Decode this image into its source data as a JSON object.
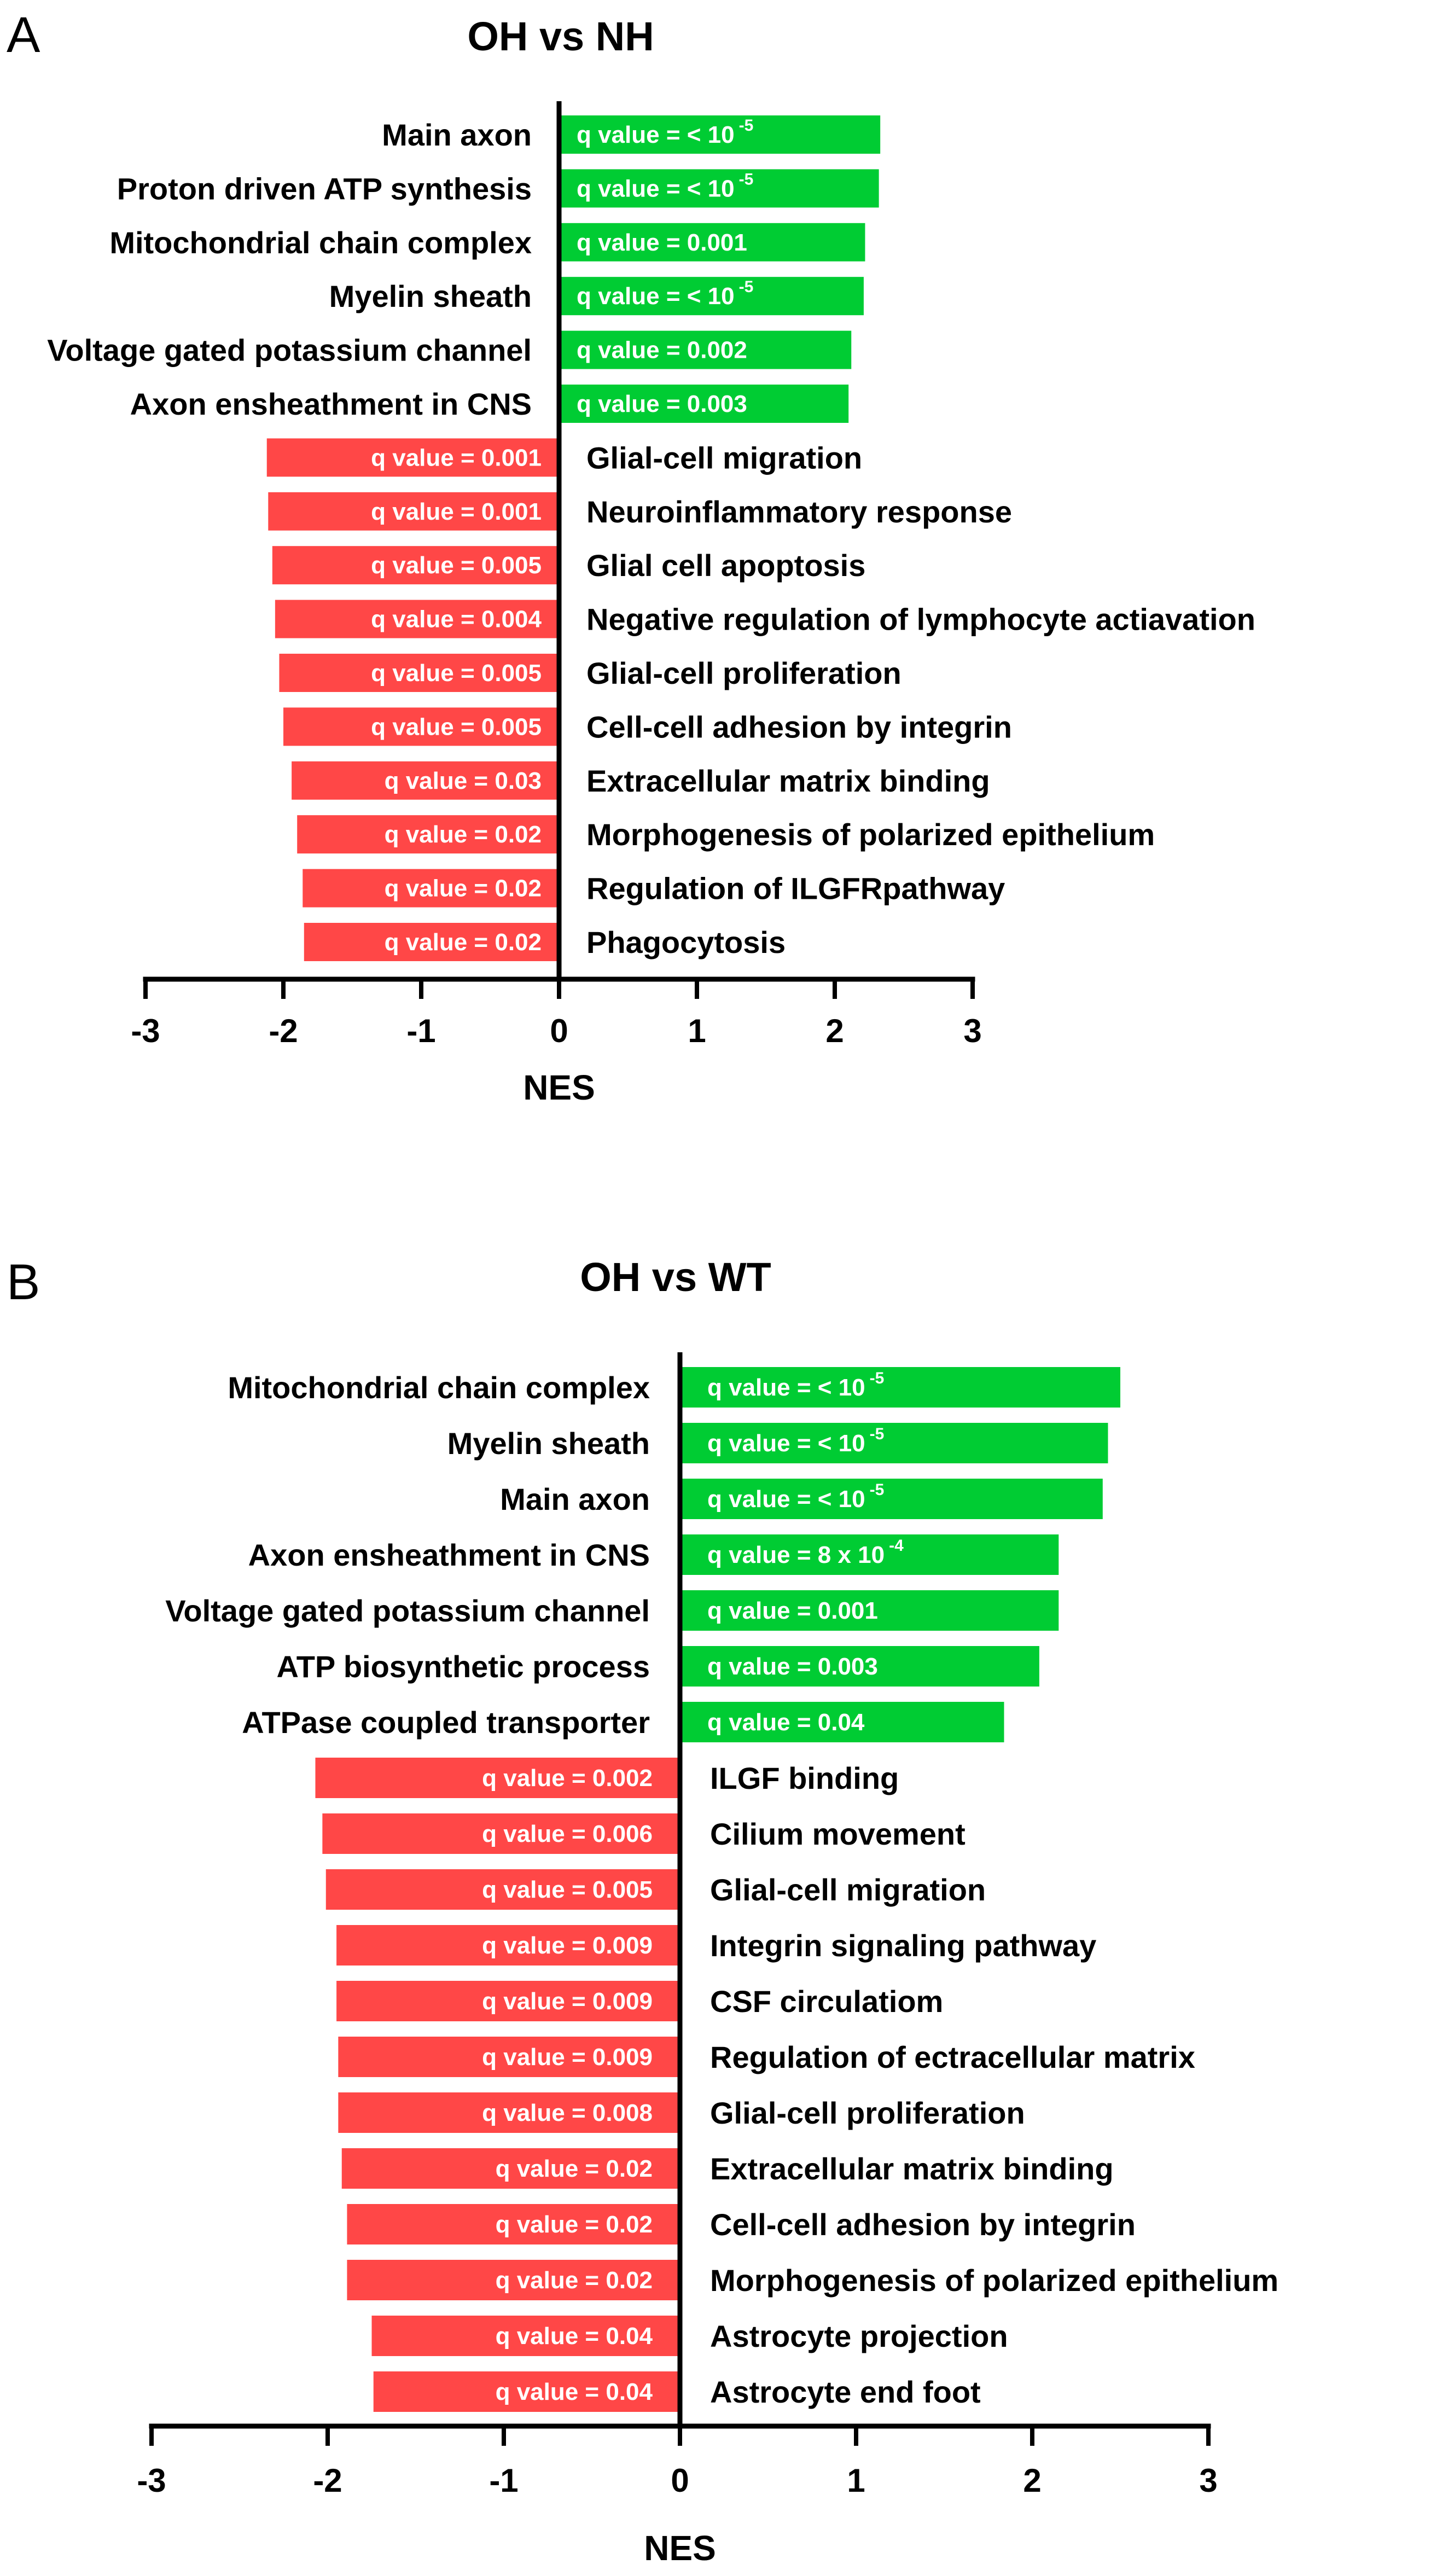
{
  "colors": {
    "positive": "#00cc33",
    "negative": "#ff4747",
    "axis": "#000000",
    "bar_text": "#ffffff"
  },
  "chart_data": [
    {
      "type": "bar",
      "orientation": "horizontal",
      "panel_label": "A",
      "title": "OH vs NH",
      "xlabel": "NES",
      "ylabel": "",
      "xlim": [
        -3,
        3
      ],
      "xticks": [
        "-3",
        "-2",
        "-1",
        "0",
        "1",
        "2",
        "3"
      ],
      "bars": [
        {
          "term": "Main axon",
          "nes": 2.33,
          "q_text": "q value = < 10",
          "q_exp": "-5"
        },
        {
          "term": "Proton driven ATP synthesis",
          "nes": 2.32,
          "q_text": "q value = < 10",
          "q_exp": "-5"
        },
        {
          "term": "Mitochondrial chain complex",
          "nes": 2.22,
          "q_text": "q value = 0.001",
          "q_exp": ""
        },
        {
          "term": "Myelin sheath",
          "nes": 2.21,
          "q_text": "q value = < 10",
          "q_exp": "-5"
        },
        {
          "term": "Voltage gated potassium channel",
          "nes": 2.12,
          "q_text": "q value = 0.002",
          "q_exp": ""
        },
        {
          "term": "Axon ensheathment in CNS",
          "nes": 2.1,
          "q_text": "q value = 0.003",
          "q_exp": ""
        },
        {
          "term": "Glial-cell migration",
          "nes": -2.12,
          "q_text": "q value = 0.001",
          "q_exp": ""
        },
        {
          "term": "Neuroinflammatory response",
          "nes": -2.11,
          "q_text": "q value = 0.001",
          "q_exp": ""
        },
        {
          "term": "Glial cell apoptosis",
          "nes": -2.08,
          "q_text": "q value = 0.005",
          "q_exp": ""
        },
        {
          "term": "Negative regulation of lymphocyte actiavation",
          "nes": -2.06,
          "q_text": "q value = 0.004",
          "q_exp": ""
        },
        {
          "term": "Glial-cell proliferation",
          "nes": -2.03,
          "q_text": "q value = 0.005",
          "q_exp": ""
        },
        {
          "term": "Cell-cell adhesion by integrin",
          "nes": -2.0,
          "q_text": "q value = 0.005",
          "q_exp": ""
        },
        {
          "term": "Extracellular matrix binding",
          "nes": -1.94,
          "q_text": "q value = 0.03",
          "q_exp": ""
        },
        {
          "term": "Morphogenesis of polarized epithelium",
          "nes": -1.9,
          "q_text": "q value = 0.02",
          "q_exp": ""
        },
        {
          "term": "Regulation of ILGFRpathway",
          "nes": -1.86,
          "q_text": "q value = 0.02",
          "q_exp": ""
        },
        {
          "term": "Phagocytosis",
          "nes": -1.85,
          "q_text": "q value = 0.02",
          "q_exp": ""
        }
      ]
    },
    {
      "type": "bar",
      "orientation": "horizontal",
      "panel_label": "B",
      "title": "OH vs WT",
      "xlabel": "NES",
      "ylabel": "",
      "xlim": [
        -3,
        3
      ],
      "xticks": [
        "-3",
        "-2",
        "-1",
        "0",
        "1",
        "2",
        "3"
      ],
      "bars": [
        {
          "term": "Mitochondrial chain complex",
          "nes": 2.5,
          "q_text": "q value = < 10",
          "q_exp": "-5"
        },
        {
          "term": "Myelin sheath",
          "nes": 2.43,
          "q_text": "q value = < 10",
          "q_exp": "-5"
        },
        {
          "term": "Main axon",
          "nes": 2.4,
          "q_text": "q value = < 10",
          "q_exp": "-5"
        },
        {
          "term": "Axon ensheathment in CNS",
          "nes": 2.15,
          "q_text": "q value = 8 x 10",
          "q_exp": "-4"
        },
        {
          "term": "Voltage gated potassium channel",
          "nes": 2.15,
          "q_text": "q value = 0.001",
          "q_exp": ""
        },
        {
          "term": "ATP biosynthetic process",
          "nes": 2.04,
          "q_text": "q value = 0.003",
          "q_exp": ""
        },
        {
          "term": "ATPase coupled transporter",
          "nes": 1.84,
          "q_text": "q value = 0.04",
          "q_exp": ""
        },
        {
          "term": "ILGF binding",
          "nes": -2.07,
          "q_text": "q value = 0.002",
          "q_exp": ""
        },
        {
          "term": "Cilium movement",
          "nes": -2.03,
          "q_text": "q value = 0.006",
          "q_exp": ""
        },
        {
          "term": "Glial-cell migration",
          "nes": -2.01,
          "q_text": "q value = 0.005",
          "q_exp": ""
        },
        {
          "term": "Integrin signaling pathway",
          "nes": -1.95,
          "q_text": "q value = 0.009",
          "q_exp": ""
        },
        {
          "term": "CSF circulatiom",
          "nes": -1.95,
          "q_text": "q value = 0.009",
          "q_exp": ""
        },
        {
          "term": "Regulation of ectracellular matrix",
          "nes": -1.94,
          "q_text": "q value = 0.009",
          "q_exp": ""
        },
        {
          "term": "Glial-cell proliferation",
          "nes": -1.94,
          "q_text": "q value = 0.008",
          "q_exp": ""
        },
        {
          "term": "Extracellular matrix binding",
          "nes": -1.92,
          "q_text": "q value = 0.02",
          "q_exp": ""
        },
        {
          "term": "Cell-cell adhesion by integrin",
          "nes": -1.89,
          "q_text": "q value = 0.02",
          "q_exp": ""
        },
        {
          "term": "Morphogenesis of polarized epithelium",
          "nes": -1.89,
          "q_text": "q value = 0.02",
          "q_exp": ""
        },
        {
          "term": "Astrocyte projection",
          "nes": -1.75,
          "q_text": "q value = 0.04",
          "q_exp": ""
        },
        {
          "term": "Astrocyte end foot",
          "nes": -1.74,
          "q_text": "q value = 0.04",
          "q_exp": ""
        }
      ]
    }
  ]
}
